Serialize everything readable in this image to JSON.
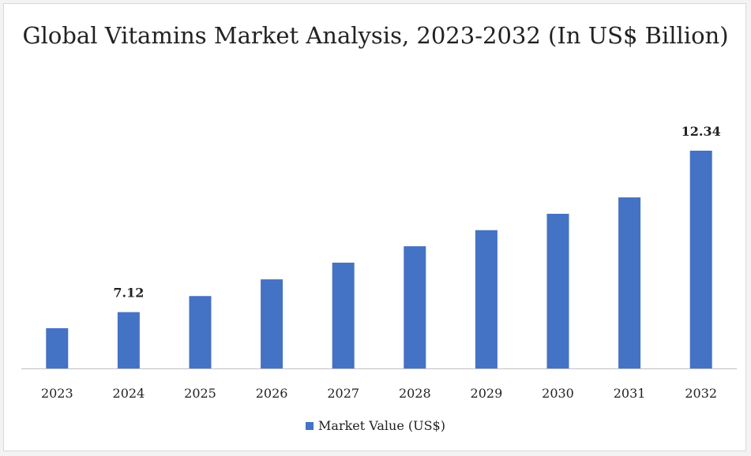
{
  "colors": {
    "bar": "#4472c4",
    "axis": "#bfbfbf"
  },
  "chart_data": {
    "type": "bar",
    "title": "Global Vitamins Market Analysis, 2023-2032 (In US$ Billion)",
    "categories": [
      "2023",
      "2024",
      "2025",
      "2026",
      "2027",
      "2028",
      "2029",
      "2030",
      "2031",
      "2032"
    ],
    "series": [
      {
        "name": "Market Value (US$)",
        "values": [
          6.6,
          7.12,
          7.64,
          8.18,
          8.72,
          9.25,
          9.77,
          10.3,
          10.83,
          12.34
        ]
      }
    ],
    "data_labels": {
      "1": "7.12",
      "9": "12.34"
    },
    "ylim": [
      5.3,
      12.34
    ],
    "grid": false,
    "legend": "bottom"
  }
}
